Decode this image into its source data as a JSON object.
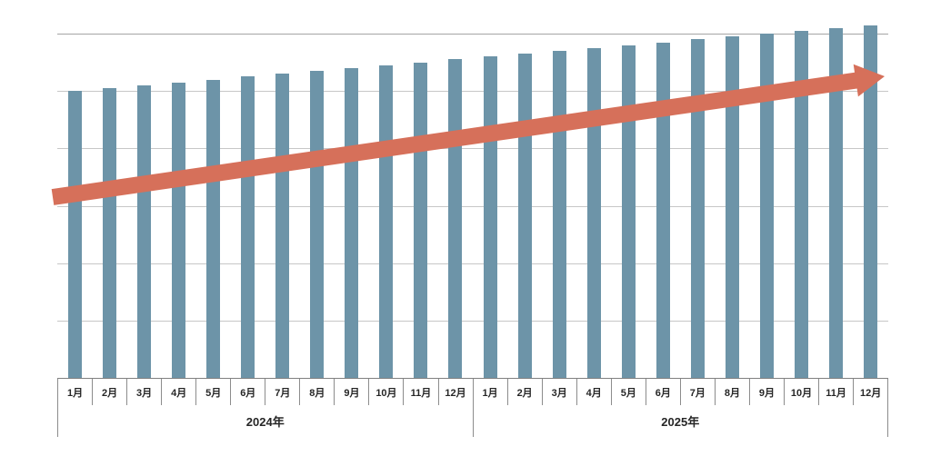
{
  "chart": {
    "background": "#FFFFFF",
    "colors": {
      "bar": "#6D94A8",
      "arrow": "#D6705A",
      "gridline": "#C7C7C7",
      "top_gridline": "#A5A5A5",
      "axis_line": "#808080",
      "label_text": "#262626"
    }
  },
  "chart_data": {
    "type": "bar",
    "title": "",
    "legend": "none",
    "x_axis": {
      "groups": [
        {
          "label": "2024年",
          "months": [
            "1月",
            "2月",
            "3月",
            "4月",
            "5月",
            "6月",
            "7月",
            "8月",
            "9月",
            "10月",
            "11月",
            "12月"
          ]
        },
        {
          "label": "2025年",
          "months": [
            "1月",
            "2月",
            "3月",
            "4月",
            "5月",
            "6月",
            "7月",
            "8月",
            "9月",
            "10月",
            "11月",
            "12月"
          ]
        }
      ]
    },
    "y_axis": {
      "labels_visible": false,
      "gridline_step": 10,
      "max_gridline": 60,
      "ylim": [
        0,
        63
      ]
    },
    "series": [
      {
        "name": "monthly-value",
        "values": [
          50,
          50.5,
          51,
          51.5,
          52,
          52.5,
          53,
          53.5,
          54,
          54.5,
          55,
          55.5,
          56,
          56.5,
          57,
          57.5,
          58,
          58.5,
          59,
          59.5,
          60,
          60.5,
          61,
          61.5
        ]
      }
    ],
    "annotations": [
      {
        "type": "block-arrow",
        "name": "upward-trend-arrow",
        "color": "#D6705A",
        "from_month": "2024年 1月",
        "to_month": "2025年 12月",
        "direction": "up-right"
      }
    ]
  }
}
